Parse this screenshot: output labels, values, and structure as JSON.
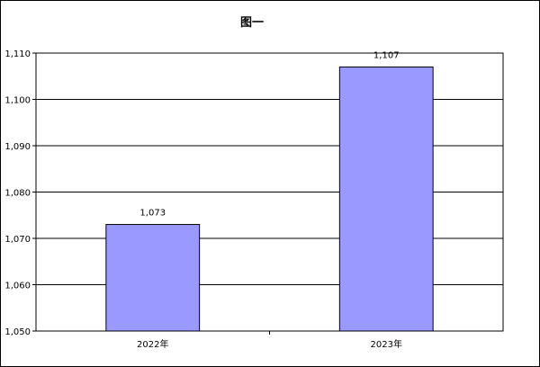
{
  "chart_data": {
    "type": "bar",
    "title": "图一",
    "xlabel": "",
    "ylabel": "",
    "categories": [
      "2022年",
      "2023年"
    ],
    "values": [
      1073,
      1107
    ],
    "value_labels": [
      "1,073",
      "1,107"
    ],
    "ylim": [
      1050,
      1110
    ],
    "yticks": [
      1050,
      1060,
      1070,
      1080,
      1090,
      1100,
      1110
    ],
    "ytick_labels": [
      "1,050",
      "1,060",
      "1,070",
      "1,080",
      "1,090",
      "1,100",
      "1,110"
    ],
    "grid": true,
    "legend": "none",
    "bar_color": "#9999ff"
  }
}
